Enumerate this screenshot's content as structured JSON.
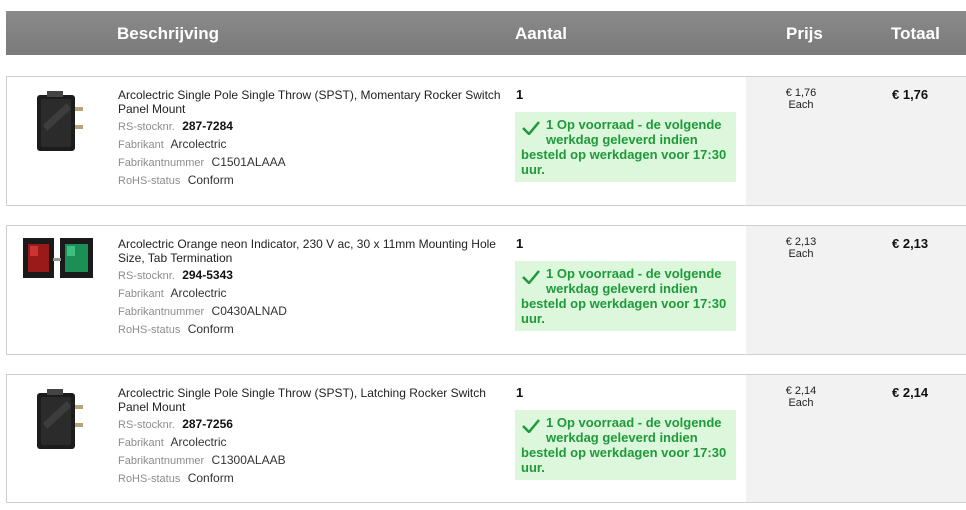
{
  "header": {
    "description": "Beschrijving",
    "quantity": "Aantal",
    "price": "Prijs",
    "total": "Totaal"
  },
  "labels": {
    "rs_stock": "RS-stocknr.",
    "manufacturer": "Fabrikant",
    "part_number": "Fabrikantnummer",
    "rohs": "RoHS-status"
  },
  "items": [
    {
      "description": "Arcolectric Single Pole Single Throw (SPST), Momentary Rocker Switch Panel Mount",
      "rs_stock": "287-7284",
      "manufacturer": "Arcolectric",
      "part_number": "C1501ALAAA",
      "rohs": "Conform",
      "quantity": "1",
      "stock_line1": "1 Op voorraad - de volgende werkdag geleverd indien",
      "stock_line2": "besteld op werkdagen voor 17:30 uur.",
      "unit_price": "€ 1,76",
      "unit": "Each",
      "total": "€ 1,76"
    },
    {
      "description": "Arcolectric Orange neon Indicator, 230 V ac, 30 x 11mm Mounting Hole Size, Tab Termination",
      "rs_stock": "294-5343",
      "manufacturer": "Arcolectric",
      "part_number": "C0430ALNAD",
      "rohs": "Conform",
      "quantity": "1",
      "stock_line1": "1 Op voorraad - de volgende werkdag geleverd indien",
      "stock_line2": "besteld op werkdagen voor 17:30 uur.",
      "unit_price": "€ 2,13",
      "unit": "Each",
      "total": "€ 2,13"
    },
    {
      "description": "Arcolectric Single Pole Single Throw (SPST), Latching Rocker Switch Panel Mount",
      "rs_stock": "287-7256",
      "manufacturer": "Arcolectric",
      "part_number": "C1300ALAAB",
      "rohs": "Conform",
      "quantity": "1",
      "stock_line1": "1 Op voorraad - de volgende werkdag geleverd indien",
      "stock_line2": "besteld op werkdagen voor 17:30 uur.",
      "unit_price": "€ 2,14",
      "unit": "Each",
      "total": "€ 2,14"
    }
  ],
  "colors": {
    "header_bg": "#808080",
    "stock_bg": "#dcf7dc",
    "stock_text": "#1f9a3a",
    "price_col_bg": "#f2f2f2"
  },
  "icons": [
    "rocker-switch-icon",
    "neon-indicator-icon",
    "check-icon"
  ]
}
